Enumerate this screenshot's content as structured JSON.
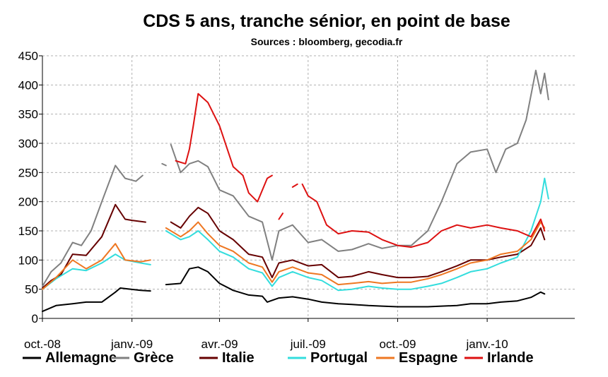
{
  "chart_data": {
    "type": "line",
    "title": "CDS 5 ans, tranche sénior, en point de base",
    "subtitle": "Sources : bloomberg, gecodia.fr",
    "xlabel": "",
    "ylabel": "",
    "ylim": [
      0,
      450
    ],
    "yticks": [
      0,
      50,
      100,
      150,
      200,
      250,
      300,
      350,
      400,
      450
    ],
    "xlim": [
      "2008-10-01",
      "2010-04-01"
    ],
    "xticks": [
      {
        "date": "2008-10-01",
        "label": "oct.-08"
      },
      {
        "date": "2009-01-01",
        "label": "janv.-09"
      },
      {
        "date": "2009-04-01",
        "label": "avr.-09"
      },
      {
        "date": "2009-07-01",
        "label": "juil.-09"
      },
      {
        "date": "2009-10-01",
        "label": "oct.-09"
      },
      {
        "date": "2010-01-01",
        "label": "janv.-10"
      }
    ],
    "grid": true,
    "legend_position": "bottom",
    "series": [
      {
        "name": "Allemagne",
        "color": "#000000",
        "points": [
          [
            "2008-10-01",
            12
          ],
          [
            "2008-10-15",
            22
          ],
          [
            "2008-11-01",
            25
          ],
          [
            "2008-11-15",
            28
          ],
          [
            "2008-12-01",
            28
          ],
          [
            "2008-12-15",
            45
          ],
          [
            "2008-12-20",
            52
          ],
          [
            "2008-12-31",
            50
          ],
          [
            "2009-01-10",
            48
          ],
          [
            "2009-01-20",
            47
          ],
          null,
          [
            "2009-02-05",
            58
          ],
          [
            "2009-02-20",
            60
          ],
          [
            "2009-03-01",
            85
          ],
          [
            "2009-03-10",
            88
          ],
          [
            "2009-03-20",
            80
          ],
          [
            "2009-04-01",
            60
          ],
          [
            "2009-04-15",
            48
          ],
          [
            "2009-05-01",
            40
          ],
          [
            "2009-05-15",
            38
          ],
          [
            "2009-05-20",
            28
          ],
          [
            "2009-06-01",
            35
          ],
          [
            "2009-06-15",
            37
          ],
          [
            "2009-07-01",
            33
          ],
          [
            "2009-07-15",
            28
          ],
          [
            "2009-08-01",
            25
          ],
          [
            "2009-08-15",
            24
          ],
          [
            "2009-09-01",
            22
          ],
          [
            "2009-09-15",
            21
          ],
          [
            "2009-10-01",
            20
          ],
          [
            "2009-10-15",
            20
          ],
          [
            "2009-11-01",
            20
          ],
          [
            "2009-11-15",
            21
          ],
          [
            "2009-12-01",
            22
          ],
          [
            "2009-12-15",
            25
          ],
          [
            "2010-01-01",
            25
          ],
          [
            "2010-01-15",
            28
          ],
          [
            "2010-02-01",
            30
          ],
          [
            "2010-02-15",
            36
          ],
          [
            "2010-02-25",
            45
          ],
          [
            "2010-03-01",
            42
          ]
        ]
      },
      {
        "name": "Grèce",
        "color": "#808080",
        "points": [
          [
            "2008-10-01",
            55
          ],
          [
            "2008-10-10",
            80
          ],
          [
            "2008-10-20",
            95
          ],
          [
            "2008-11-01",
            130
          ],
          [
            "2008-11-10",
            125
          ],
          [
            "2008-11-20",
            150
          ],
          [
            "2008-12-01",
            200
          ],
          [
            "2008-12-15",
            262
          ],
          [
            "2008-12-25",
            240
          ],
          [
            "2009-01-05",
            235
          ],
          [
            "2009-01-12",
            245
          ],
          null,
          [
            "2009-02-01",
            265
          ],
          [
            "2009-02-05",
            262
          ],
          null,
          [
            "2009-02-10",
            298
          ],
          [
            "2009-02-20",
            250
          ],
          [
            "2009-03-01",
            265
          ],
          [
            "2009-03-10",
            270
          ],
          [
            "2009-03-20",
            260
          ],
          [
            "2009-04-01",
            220
          ],
          [
            "2009-04-15",
            210
          ],
          [
            "2009-05-01",
            175
          ],
          [
            "2009-05-15",
            165
          ],
          [
            "2009-05-25",
            100
          ],
          [
            "2009-06-01",
            150
          ],
          [
            "2009-06-15",
            160
          ],
          [
            "2009-07-01",
            130
          ],
          [
            "2009-07-15",
            135
          ],
          [
            "2009-08-01",
            115
          ],
          [
            "2009-08-15",
            118
          ],
          [
            "2009-09-01",
            128
          ],
          [
            "2009-09-15",
            120
          ],
          [
            "2009-10-01",
            125
          ],
          [
            "2009-10-15",
            125
          ],
          [
            "2009-11-01",
            150
          ],
          [
            "2009-11-15",
            200
          ],
          [
            "2009-12-01",
            265
          ],
          [
            "2009-12-15",
            285
          ],
          [
            "2010-01-01",
            290
          ],
          [
            "2010-01-10",
            250
          ],
          [
            "2010-01-20",
            290
          ],
          [
            "2010-02-01",
            300
          ],
          [
            "2010-02-10",
            340
          ],
          [
            "2010-02-20",
            425
          ],
          [
            "2010-02-25",
            385
          ],
          [
            "2010-03-01",
            420
          ],
          [
            "2010-03-05",
            375
          ]
        ]
      },
      {
        "name": "Italie",
        "color": "#660000",
        "points": [
          [
            "2008-10-01",
            52
          ],
          [
            "2008-10-10",
            65
          ],
          [
            "2008-10-20",
            75
          ],
          [
            "2008-11-01",
            110
          ],
          [
            "2008-11-15",
            108
          ],
          [
            "2008-12-01",
            140
          ],
          [
            "2008-12-15",
            195
          ],
          [
            "2008-12-25",
            170
          ],
          [
            "2009-01-01",
            168
          ],
          [
            "2009-01-15",
            165
          ],
          null,
          [
            "2009-02-10",
            165
          ],
          [
            "2009-02-20",
            155
          ],
          [
            "2009-03-01",
            175
          ],
          [
            "2009-03-10",
            190
          ],
          [
            "2009-03-20",
            180
          ],
          [
            "2009-04-01",
            150
          ],
          [
            "2009-04-15",
            135
          ],
          [
            "2009-05-01",
            110
          ],
          [
            "2009-05-15",
            105
          ],
          [
            "2009-05-25",
            70
          ],
          [
            "2009-06-01",
            95
          ],
          [
            "2009-06-15",
            100
          ],
          [
            "2009-07-01",
            90
          ],
          [
            "2009-07-15",
            92
          ],
          [
            "2009-08-01",
            70
          ],
          [
            "2009-08-15",
            72
          ],
          [
            "2009-09-01",
            80
          ],
          [
            "2009-09-15",
            75
          ],
          [
            "2009-10-01",
            70
          ],
          [
            "2009-10-15",
            70
          ],
          [
            "2009-11-01",
            72
          ],
          [
            "2009-11-15",
            80
          ],
          [
            "2009-12-01",
            90
          ],
          [
            "2009-12-15",
            100
          ],
          [
            "2010-01-01",
            100
          ],
          [
            "2010-01-15",
            105
          ],
          [
            "2010-02-01",
            110
          ],
          [
            "2010-02-15",
            125
          ],
          [
            "2010-02-25",
            155
          ],
          [
            "2010-03-01",
            135
          ]
        ]
      },
      {
        "name": "Portugal",
        "color": "#33dddd",
        "points": [
          [
            "2008-10-01",
            50
          ],
          [
            "2008-10-15",
            68
          ],
          [
            "2008-11-01",
            85
          ],
          [
            "2008-11-15",
            82
          ],
          [
            "2008-12-01",
            95
          ],
          [
            "2008-12-15",
            110
          ],
          [
            "2008-12-25",
            100
          ],
          [
            "2009-01-10",
            95
          ],
          [
            "2009-01-20",
            92
          ],
          null,
          [
            "2009-02-05",
            150
          ],
          [
            "2009-02-20",
            135
          ],
          [
            "2009-03-01",
            140
          ],
          [
            "2009-03-10",
            150
          ],
          [
            "2009-03-20",
            135
          ],
          [
            "2009-04-01",
            115
          ],
          [
            "2009-04-15",
            105
          ],
          [
            "2009-05-01",
            85
          ],
          [
            "2009-05-15",
            78
          ],
          [
            "2009-05-25",
            55
          ],
          [
            "2009-06-01",
            70
          ],
          [
            "2009-06-15",
            80
          ],
          [
            "2009-07-01",
            70
          ],
          [
            "2009-07-15",
            65
          ],
          [
            "2009-08-01",
            48
          ],
          [
            "2009-08-15",
            50
          ],
          [
            "2009-09-01",
            55
          ],
          [
            "2009-09-15",
            52
          ],
          [
            "2009-10-01",
            50
          ],
          [
            "2009-10-15",
            50
          ],
          [
            "2009-11-01",
            55
          ],
          [
            "2009-11-15",
            60
          ],
          [
            "2009-12-01",
            70
          ],
          [
            "2009-12-15",
            80
          ],
          [
            "2010-01-01",
            85
          ],
          [
            "2010-01-15",
            95
          ],
          [
            "2010-02-01",
            105
          ],
          [
            "2010-02-15",
            150
          ],
          [
            "2010-02-25",
            200
          ],
          [
            "2010-03-01",
            240
          ],
          [
            "2010-03-05",
            205
          ]
        ]
      },
      {
        "name": "Espagne",
        "color": "#ee7722",
        "points": [
          [
            "2008-10-01",
            50
          ],
          [
            "2008-10-15",
            70
          ],
          [
            "2008-11-01",
            100
          ],
          [
            "2008-11-15",
            85
          ],
          [
            "2008-12-01",
            100
          ],
          [
            "2008-12-15",
            128
          ],
          [
            "2008-12-25",
            100
          ],
          [
            "2009-01-10",
            97
          ],
          [
            "2009-01-20",
            100
          ],
          null,
          [
            "2009-02-05",
            155
          ],
          [
            "2009-02-20",
            140
          ],
          [
            "2009-03-01",
            150
          ],
          [
            "2009-03-10",
            165
          ],
          [
            "2009-03-20",
            145
          ],
          [
            "2009-04-01",
            125
          ],
          [
            "2009-04-15",
            115
          ],
          [
            "2009-05-01",
            95
          ],
          [
            "2009-05-15",
            88
          ],
          [
            "2009-05-25",
            62
          ],
          [
            "2009-06-01",
            80
          ],
          [
            "2009-06-15",
            88
          ],
          [
            "2009-07-01",
            78
          ],
          [
            "2009-07-15",
            75
          ],
          [
            "2009-08-01",
            58
          ],
          [
            "2009-08-15",
            60
          ],
          [
            "2009-09-01",
            63
          ],
          [
            "2009-09-15",
            60
          ],
          [
            "2009-10-01",
            62
          ],
          [
            "2009-10-15",
            62
          ],
          [
            "2009-11-01",
            68
          ],
          [
            "2009-11-15",
            75
          ],
          [
            "2009-12-01",
            85
          ],
          [
            "2009-12-15",
            95
          ],
          [
            "2010-01-01",
            100
          ],
          [
            "2010-01-15",
            110
          ],
          [
            "2010-02-01",
            115
          ],
          [
            "2010-02-15",
            135
          ],
          [
            "2010-02-25",
            165
          ],
          [
            "2010-03-01",
            155
          ]
        ]
      },
      {
        "name": "Irlande",
        "color": "#dd1111",
        "points": [
          [
            "2009-02-15",
            270
          ],
          [
            "2009-02-25",
            265
          ],
          [
            "2009-03-01",
            290
          ],
          [
            "2009-03-05",
            330
          ],
          [
            "2009-03-10",
            385
          ],
          [
            "2009-03-20",
            370
          ],
          [
            "2009-04-01",
            330
          ],
          [
            "2009-04-15",
            260
          ],
          [
            "2009-04-25",
            245
          ],
          [
            "2009-05-01",
            215
          ],
          [
            "2009-05-10",
            200
          ],
          [
            "2009-05-20",
            240
          ],
          [
            "2009-05-25",
            245
          ],
          null,
          [
            "2009-06-01",
            170
          ],
          [
            "2009-06-05",
            180
          ],
          null,
          [
            "2009-06-15",
            225
          ],
          [
            "2009-06-20",
            230
          ],
          null,
          [
            "2009-06-25",
            230
          ],
          [
            "2009-07-01",
            210
          ],
          [
            "2009-07-10",
            200
          ],
          [
            "2009-07-20",
            160
          ],
          [
            "2009-08-01",
            145
          ],
          [
            "2009-08-15",
            150
          ],
          [
            "2009-09-01",
            148
          ],
          [
            "2009-09-15",
            135
          ],
          [
            "2009-10-01",
            125
          ],
          [
            "2009-10-15",
            122
          ],
          [
            "2009-11-01",
            130
          ],
          [
            "2009-11-15",
            150
          ],
          [
            "2009-12-01",
            160
          ],
          [
            "2009-12-15",
            155
          ],
          [
            "2010-01-01",
            160
          ],
          [
            "2010-01-15",
            155
          ],
          [
            "2010-02-01",
            150
          ],
          [
            "2010-02-15",
            140
          ],
          [
            "2010-02-25",
            170
          ],
          [
            "2010-03-01",
            150
          ]
        ]
      }
    ]
  }
}
